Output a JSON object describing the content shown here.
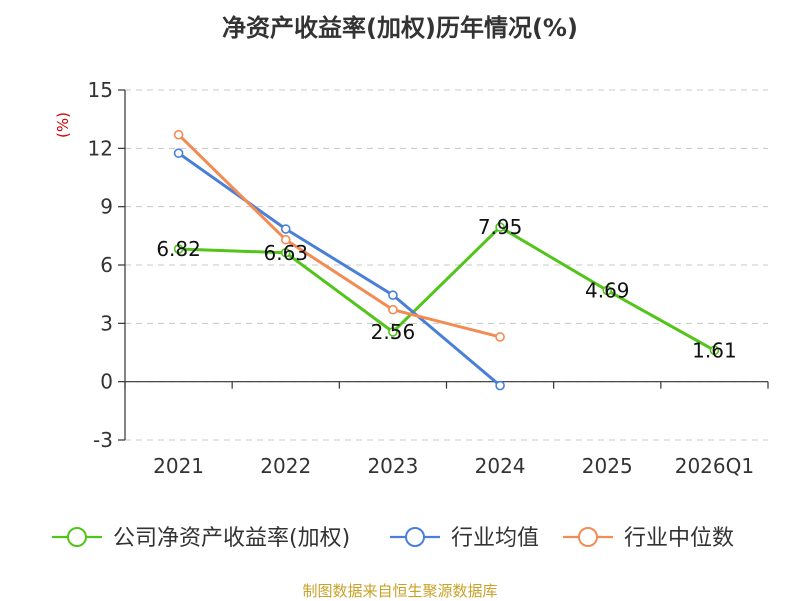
{
  "chart_data": {
    "type": "line",
    "title": "净资产收益率(加权)历年情况(%)",
    "ylabel": "(%)",
    "xlabel": "",
    "categories": [
      "2021",
      "2022",
      "2023",
      "2024",
      "2025",
      "2026Q1"
    ],
    "ylim": [
      -3,
      15
    ],
    "yticks": [
      -3,
      0,
      3,
      6,
      9,
      12,
      15
    ],
    "grid": true,
    "legend_position": "bottom",
    "series": [
      {
        "name": "公司净资产收益率(加权)",
        "color": "#52c41a",
        "values": [
          6.82,
          6.63,
          2.56,
          7.95,
          4.69,
          1.61
        ],
        "labels": [
          "6.82",
          "6.63",
          "2.56",
          "7.95",
          "4.69",
          "1.61"
        ]
      },
      {
        "name": "行业均值",
        "color": "#4a7fd8",
        "values": [
          11.75,
          7.85,
          4.45,
          -0.2,
          null,
          null
        ]
      },
      {
        "name": "行业中位数",
        "color": "#f28b54",
        "values": [
          12.7,
          7.3,
          3.7,
          2.3,
          null,
          null
        ]
      }
    ],
    "source": "制图数据来自恒生聚源数据库",
    "source_color": "#c9a227",
    "unit_color": "#d00000"
  }
}
